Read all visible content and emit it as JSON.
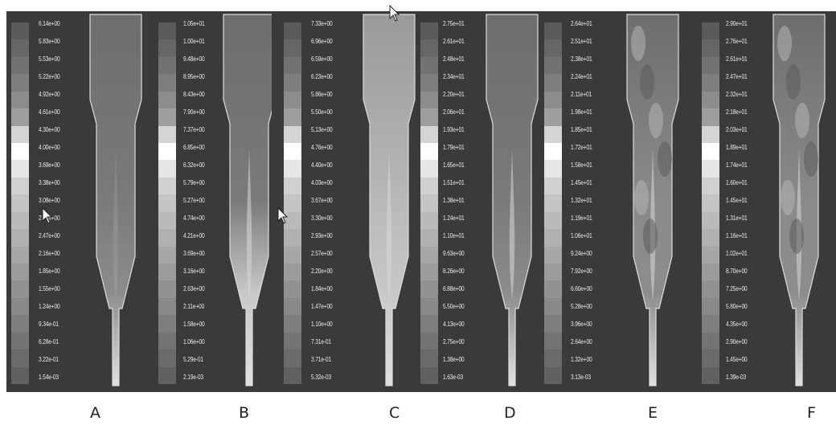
{
  "panels": [
    {
      "label": "A",
      "ticks": [
        "6.14e+00",
        "5.83e+00",
        "5.53e+00",
        "5.22e+00",
        "4.92e+00",
        "4.61e+00",
        "4.30e+00",
        "4.00e+00",
        "3.69e+00",
        "3.38e+00",
        "3.08e+00",
        "2.77e+00",
        "2.47e+00",
        "2.16e+00",
        "1.85e+00",
        "1.55e+00",
        "1.24e+00",
        "9.34e-01",
        "6.28e-01",
        "3.22e-01",
        "1.54e-03"
      ]
    },
    {
      "label": "B",
      "ticks": [
        "1.05e+01",
        "1.00e+01",
        "9.48e+00",
        "8.95e+00",
        "8.43e+00",
        "7.90e+00",
        "7.37e+00",
        "6.85e+00",
        "6.32e+00",
        "5.79e+00",
        "5.27e+00",
        "4.74e+00",
        "4.21e+00",
        "3.69e+00",
        "3.16e+00",
        "2.63e+00",
        "2.11e+00",
        "1.58e+00",
        "1.06e+00",
        "5.29e-01",
        "2.19e-03"
      ]
    },
    {
      "label": "C",
      "ticks": [
        "7.33e+00",
        "6.96e+00",
        "6.59e+00",
        "6.23e+00",
        "5.86e+00",
        "5.50e+00",
        "5.13e+00",
        "4.76e+00",
        "4.40e+00",
        "4.03e+00",
        "3.67e+00",
        "3.30e+00",
        "2.93e+00",
        "2.57e+00",
        "2.20e+00",
        "1.84e+00",
        "1.47e+00",
        "1.10e+00",
        "7.31e-01",
        "3.71e-01",
        "5.32e-03"
      ]
    },
    {
      "label": "D",
      "ticks": [
        "2.75e+01",
        "2.61e+01",
        "2.48e+01",
        "2.34e+01",
        "2.20e+01",
        "2.06e+01",
        "1.93e+01",
        "1.79e+01",
        "1.65e+01",
        "1.51e+01",
        "1.38e+01",
        "1.24e+01",
        "1.10e+01",
        "9.63e+00",
        "8.26e+00",
        "6.88e+00",
        "5.50e+00",
        "4.13e+00",
        "2.75e+00",
        "1.38e+00",
        "1.63e-03"
      ]
    },
    {
      "label": "E",
      "ticks": [
        "2.64e+01",
        "2.51e+01",
        "2.38e+01",
        "2.24e+01",
        "2.11e+01",
        "1.98e+01",
        "1.85e+01",
        "1.72e+01",
        "1.58e+01",
        "1.45e+01",
        "1.32e+01",
        "1.19e+01",
        "1.06e+01",
        "9.24e+00",
        "7.92e+00",
        "6.60e+00",
        "5.28e+00",
        "3.96e+00",
        "2.64e+00",
        "1.32e+00",
        "3.13e-03"
      ]
    },
    {
      "label": "F",
      "ticks": [
        "2.90e+01",
        "2.76e+01",
        "2.61e+01",
        "2.47e+01",
        "2.32e+01",
        "2.18e+01",
        "2.03e+01",
        "1.89e+01",
        "1.74e+01",
        "1.60e+01",
        "1.45e+01",
        "1.31e+01",
        "1.16e+01",
        "1.02e+01",
        "8.70e+00",
        "7.25e+00",
        "5.80e+00",
        "4.35e+00",
        "2.90e+00",
        "1.45e+00",
        "1.39e-03"
      ]
    }
  ],
  "colors": {
    "panel_bg": "#3a3a3a",
    "outline": "#dcdcdc",
    "colorbar_gray_levels": [
      "#5a5a5a",
      "#666",
      "#727272",
      "#7e7e7e",
      "#8c8c8c",
      "#9e9e9e",
      "#d4d4d4",
      "#ffffff",
      "#e6e6e6",
      "#d0d0d0",
      "#c4c4c4",
      "#bababa",
      "#b0b0b0",
      "#a6a6a6",
      "#9c9c9c",
      "#929292",
      "#888",
      "#7e7e7e",
      "#747474",
      "#6a6a6a",
      "#606060"
    ]
  },
  "icons": [
    "mouse-pointer-icon"
  ]
}
